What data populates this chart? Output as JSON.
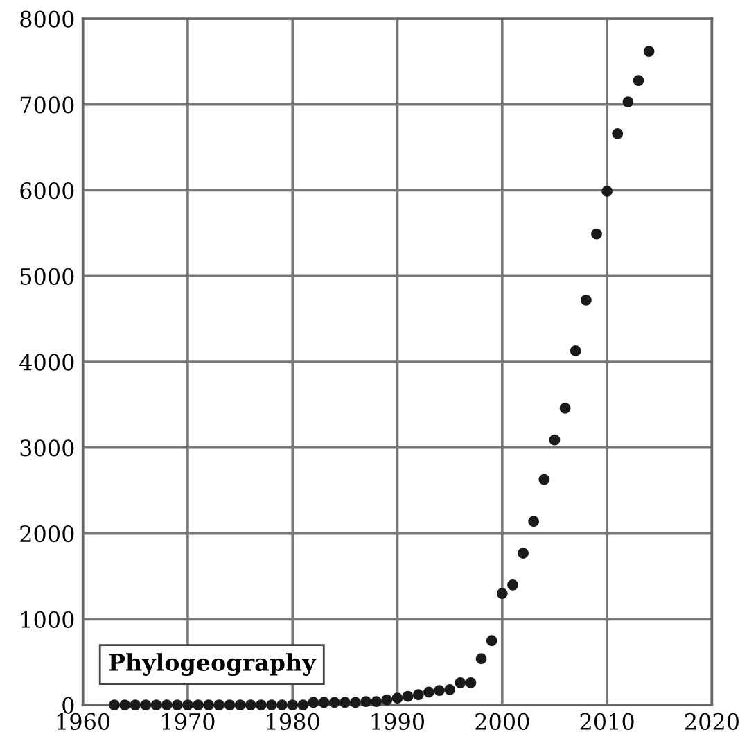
{
  "chart_data": {
    "type": "scatter",
    "x": [
      1963,
      1964,
      1965,
      1966,
      1967,
      1968,
      1969,
      1970,
      1971,
      1972,
      1973,
      1974,
      1975,
      1976,
      1977,
      1978,
      1979,
      1980,
      1981,
      1982,
      1983,
      1984,
      1985,
      1986,
      1987,
      1988,
      1989,
      1990,
      1991,
      1992,
      1993,
      1994,
      1995,
      1996,
      1997,
      1998,
      1999,
      2000,
      2001,
      2002,
      2003,
      2004,
      2005,
      2006,
      2007,
      2008,
      2009,
      2010,
      2011,
      2012,
      2013,
      2014
    ],
    "series": [
      {
        "color": "#1a1a1a",
        "values": [
          0,
          0,
          0,
          0,
          0,
          0,
          0,
          0,
          0,
          0,
          0,
          0,
          0,
          0,
          0,
          0,
          0,
          0,
          0,
          30,
          30,
          30,
          30,
          30,
          40,
          40,
          60,
          80,
          100,
          120,
          150,
          170,
          180,
          260,
          260,
          540,
          750,
          1300,
          1400,
          1770,
          2140,
          2630,
          3090,
          3460,
          4130,
          4720,
          5490,
          5990,
          6660,
          7030,
          7280,
          7620
        ]
      }
    ],
    "xlim": [
      1960,
      2020
    ],
    "xticks": [
      1960,
      1970,
      1980,
      1990,
      2000,
      2010,
      2020
    ],
    "ylim": [
      0,
      8000
    ],
    "yticks": [
      0,
      1000,
      2000,
      3000,
      4000,
      5000,
      6000,
      7000,
      8000
    ],
    "grid": true,
    "marker": "circle",
    "annotations": [
      "Phylogeography"
    ]
  }
}
